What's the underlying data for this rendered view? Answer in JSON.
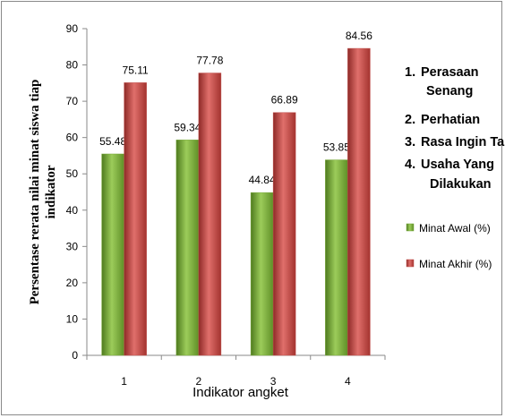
{
  "chart_data": {
    "type": "bar",
    "categories": [
      "1",
      "2",
      "3",
      "4"
    ],
    "series": [
      {
        "name": "Minat Awal (%)",
        "values": [
          55.48,
          59.34,
          44.84,
          53.85
        ],
        "color": "#77a83a"
      },
      {
        "name": "Minat Akhir (%)",
        "values": [
          75.11,
          77.78,
          66.89,
          84.56
        ],
        "color": "#c0504d"
      }
    ],
    "value_labels": [
      [
        "55.48",
        "59.34",
        "44.84",
        "53.85"
      ],
      [
        "75.11",
        "77.78",
        "66.89",
        "84.56"
      ]
    ],
    "xlabel": "Indikator  angket",
    "ylabel_lines": [
      "Persentase rerata nilai minat siswa tiap",
      "indikator"
    ],
    "ylim": [
      0,
      90
    ],
    "yticks": [
      "0",
      "10",
      "20",
      "30",
      "40",
      "50",
      "60",
      "70",
      "80",
      "90"
    ],
    "grid": false,
    "legend_position": "right",
    "annotations": [
      {
        "num": "1.",
        "lines": [
          "Perasaan",
          "Senang"
        ]
      },
      {
        "num": "2.",
        "lines": [
          "Perhatian"
        ]
      },
      {
        "num": "3.",
        "lines": [
          "Rasa Ingin Tahu"
        ]
      },
      {
        "num": "4.",
        "lines": [
          "Usaha Yang",
          "Dilakukan"
        ]
      }
    ]
  }
}
